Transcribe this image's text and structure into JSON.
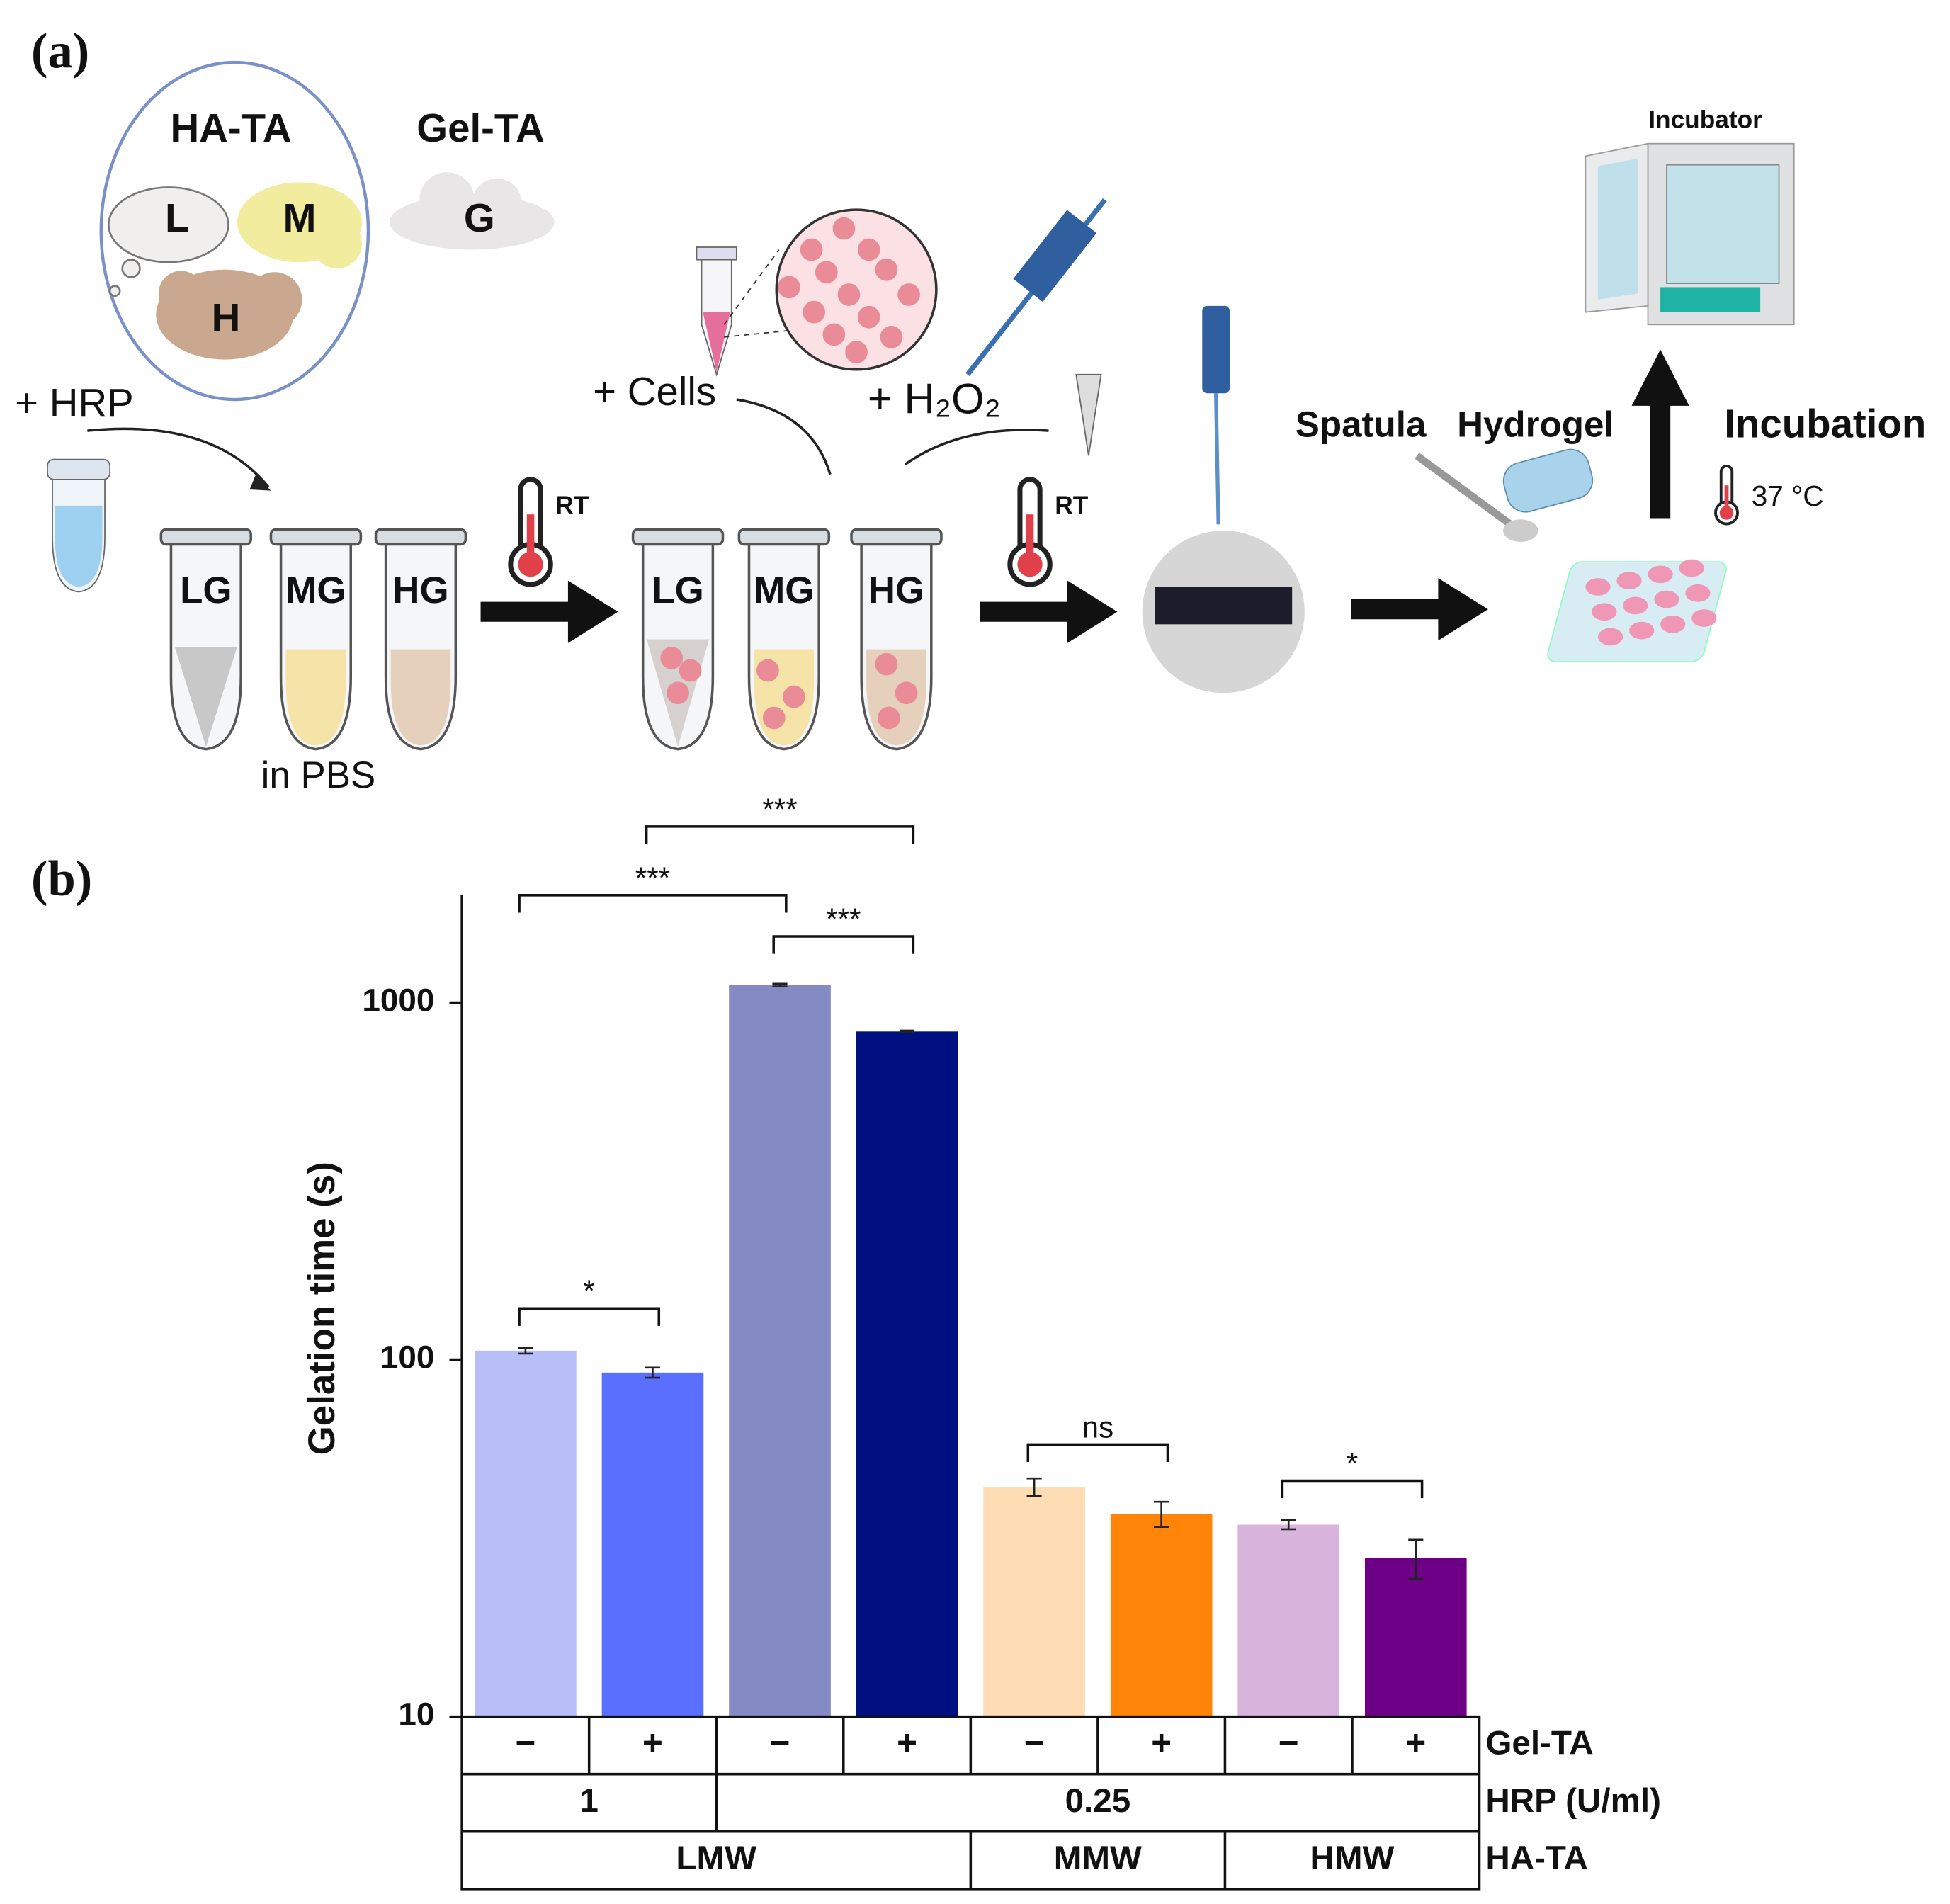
{
  "panel_a": {
    "label": "(a)",
    "ha_ta": "HA-TA",
    "gel_ta": "Gel-TA",
    "clouds": [
      "L",
      "M",
      "H",
      "G"
    ],
    "hrp": "+ HRP",
    "tubes_1": [
      "LG",
      "MG",
      "HG"
    ],
    "in_pbs": "in PBS",
    "rt": [
      "RT",
      "RT"
    ],
    "cells": "+ Cells",
    "h2o2": "+ H₂O₂",
    "tubes_2": [
      "LG",
      "MG",
      "HG"
    ],
    "spatula": "Spatula",
    "hydrogel": "Hydrogel",
    "incubation": "Incubation",
    "temperature": "37 °C",
    "incubator": "Incubator"
  },
  "chart_data": {
    "type": "bar",
    "label": "(b)",
    "ylabel": "Gelation time (s)",
    "log_scale": true,
    "ylim": [
      10,
      2000
    ],
    "yticks": [
      10,
      100,
      1000
    ],
    "categories": [
      "−",
      "+",
      "−",
      "+",
      "−",
      "+",
      "−",
      "+"
    ],
    "values": [
      106,
      92,
      1120,
      830,
      44,
      37,
      34.5,
      27.8
    ],
    "errors": [
      2,
      3,
      10,
      5,
      2.5,
      3,
      1,
      3.5
    ],
    "colors": [
      "#b8bff8",
      "#5a6ffd",
      "#848bc4",
      "#001080",
      "#fedcb4",
      "#ff8408",
      "#d9b5dd",
      "#6d0086"
    ],
    "category_row_label": "Gel-TA",
    "group_rows": [
      {
        "label": "HRP (U/ml)",
        "groups": [
          {
            "label": "1",
            "span": 2
          },
          {
            "label": "0.25",
            "span": 6
          }
        ]
      },
      {
        "label": "HA-TA",
        "groups": [
          {
            "label": "LMW",
            "span": 4
          },
          {
            "label": "MMW",
            "span": 2
          },
          {
            "label": "HMW",
            "span": 2
          }
        ]
      }
    ],
    "annotations": [
      {
        "from": 0,
        "to": 1,
        "label": "*"
      },
      {
        "from": 0,
        "to": 2,
        "label": "***"
      },
      {
        "from": 1,
        "to": 3,
        "label": "***"
      },
      {
        "from": 2,
        "to": 3,
        "label": "***"
      },
      {
        "from": 4,
        "to": 5,
        "label": "ns"
      },
      {
        "from": 6,
        "to": 7,
        "label": "*"
      }
    ]
  }
}
